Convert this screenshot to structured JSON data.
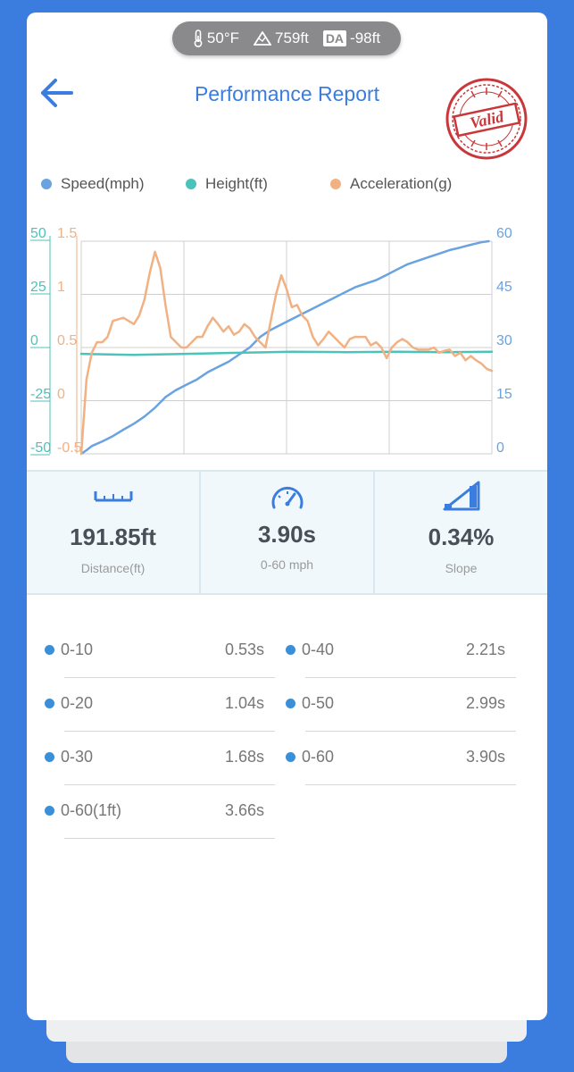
{
  "status": {
    "temperature": "50°F",
    "elevation": "759ft",
    "da_label": "DA",
    "density_altitude": "-98ft",
    "icons": [
      "thermometer-icon",
      "mountain-icon",
      "da-badge"
    ]
  },
  "header": {
    "title": "Performance Report",
    "stamp_text": "Valid",
    "stamp_color": "#c9373a",
    "accent_color": "#3a7ddf"
  },
  "legend": [
    {
      "name": "Speed(mph)",
      "color": "#6aa3df"
    },
    {
      "name": "Height(ft)",
      "color": "#4bc3bb"
    },
    {
      "name": "Acceleration(g)",
      "color": "#f1b183"
    }
  ],
  "chart_data": {
    "type": "line",
    "grid": true,
    "x": [
      0,
      0.3,
      0.6,
      0.9,
      1.2,
      1.5,
      1.8,
      2.1,
      2.4,
      2.7,
      3.0,
      3.3,
      3.6,
      3.9
    ],
    "axes": {
      "height_left": {
        "ticks": [
          "50",
          "25",
          "0",
          "-25",
          "-50"
        ],
        "range": [
          -50,
          50
        ],
        "color": "#4bc3bb"
      },
      "accel_left": {
        "ticks": [
          "1.5",
          "1",
          "0.5",
          "0",
          "-0.5"
        ],
        "range": [
          -0.5,
          1.5
        ],
        "color": "#f1b183"
      },
      "speed_right": {
        "ticks": [
          "60",
          "45",
          "30",
          "15",
          "0"
        ],
        "range": [
          0,
          60
        ],
        "color": "#6aa3df"
      }
    },
    "series": [
      {
        "name": "Speed(mph)",
        "axis": "speed_right",
        "color": "#6aa3df",
        "points": [
          [
            0,
            0
          ],
          [
            0.05,
            1
          ],
          [
            0.1,
            2.2
          ],
          [
            0.2,
            3.5
          ],
          [
            0.3,
            5
          ],
          [
            0.4,
            6.8
          ],
          [
            0.5,
            8.5
          ],
          [
            0.6,
            10.5
          ],
          [
            0.7,
            13
          ],
          [
            0.75,
            14.5
          ],
          [
            0.8,
            16
          ],
          [
            0.9,
            18
          ],
          [
            1.0,
            19.5
          ],
          [
            1.1,
            21
          ],
          [
            1.2,
            23
          ],
          [
            1.3,
            24.5
          ],
          [
            1.4,
            26
          ],
          [
            1.5,
            28
          ],
          [
            1.6,
            30
          ],
          [
            1.7,
            33
          ],
          [
            1.8,
            35
          ],
          [
            1.9,
            36.5
          ],
          [
            2.0,
            38
          ],
          [
            2.1,
            39.5
          ],
          [
            2.2,
            41
          ],
          [
            2.3,
            42.5
          ],
          [
            2.4,
            44
          ],
          [
            2.5,
            45.5
          ],
          [
            2.6,
            47
          ],
          [
            2.7,
            48
          ],
          [
            2.8,
            49
          ],
          [
            2.9,
            50.5
          ],
          [
            3.0,
            52
          ],
          [
            3.1,
            53.5
          ],
          [
            3.2,
            54.5
          ],
          [
            3.3,
            55.5
          ],
          [
            3.4,
            56.5
          ],
          [
            3.5,
            57.5
          ],
          [
            3.6,
            58.2
          ],
          [
            3.7,
            59
          ],
          [
            3.8,
            59.7
          ],
          [
            3.87,
            60
          ]
        ]
      },
      {
        "name": "Height(ft)",
        "axis": "height_left",
        "color": "#4bc3bb",
        "points": [
          [
            0,
            -3
          ],
          [
            0.5,
            -3.5
          ],
          [
            1.0,
            -3
          ],
          [
            1.5,
            -2.5
          ],
          [
            2.0,
            -2
          ],
          [
            2.5,
            -2.2
          ],
          [
            3.0,
            -2
          ],
          [
            3.5,
            -2.2
          ],
          [
            3.9,
            -2
          ]
        ]
      },
      {
        "name": "Acceleration(g)",
        "axis": "accel_left",
        "color": "#f1b183",
        "points": [
          [
            0,
            -0.5
          ],
          [
            0.05,
            0.2
          ],
          [
            0.1,
            0.45
          ],
          [
            0.15,
            0.55
          ],
          [
            0.2,
            0.55
          ],
          [
            0.25,
            0.6
          ],
          [
            0.3,
            0.75
          ],
          [
            0.4,
            0.78
          ],
          [
            0.5,
            0.72
          ],
          [
            0.55,
            0.8
          ],
          [
            0.6,
            0.95
          ],
          [
            0.65,
            1.2
          ],
          [
            0.7,
            1.4
          ],
          [
            0.75,
            1.25
          ],
          [
            0.8,
            0.9
          ],
          [
            0.85,
            0.6
          ],
          [
            0.9,
            0.55
          ],
          [
            0.95,
            0.5
          ],
          [
            1.0,
            0.5
          ],
          [
            1.05,
            0.55
          ],
          [
            1.1,
            0.6
          ],
          [
            1.15,
            0.6
          ],
          [
            1.2,
            0.7
          ],
          [
            1.25,
            0.78
          ],
          [
            1.3,
            0.72
          ],
          [
            1.35,
            0.65
          ],
          [
            1.4,
            0.7
          ],
          [
            1.45,
            0.62
          ],
          [
            1.5,
            0.65
          ],
          [
            1.55,
            0.72
          ],
          [
            1.6,
            0.68
          ],
          [
            1.65,
            0.6
          ],
          [
            1.7,
            0.55
          ],
          [
            1.75,
            0.5
          ],
          [
            1.8,
            0.75
          ],
          [
            1.85,
            1.0
          ],
          [
            1.9,
            1.18
          ],
          [
            1.95,
            1.05
          ],
          [
            2.0,
            0.88
          ],
          [
            2.05,
            0.9
          ],
          [
            2.1,
            0.8
          ],
          [
            2.15,
            0.75
          ],
          [
            2.2,
            0.6
          ],
          [
            2.25,
            0.52
          ],
          [
            2.3,
            0.58
          ],
          [
            2.35,
            0.65
          ],
          [
            2.4,
            0.6
          ],
          [
            2.45,
            0.55
          ],
          [
            2.5,
            0.5
          ],
          [
            2.55,
            0.58
          ],
          [
            2.6,
            0.6
          ],
          [
            2.7,
            0.6
          ],
          [
            2.75,
            0.52
          ],
          [
            2.8,
            0.55
          ],
          [
            2.85,
            0.5
          ],
          [
            2.9,
            0.4
          ],
          [
            2.95,
            0.5
          ],
          [
            3.0,
            0.55
          ],
          [
            3.05,
            0.58
          ],
          [
            3.1,
            0.55
          ],
          [
            3.15,
            0.5
          ],
          [
            3.2,
            0.48
          ],
          [
            3.3,
            0.48
          ],
          [
            3.35,
            0.5
          ],
          [
            3.4,
            0.45
          ],
          [
            3.45,
            0.47
          ],
          [
            3.5,
            0.48
          ],
          [
            3.55,
            0.42
          ],
          [
            3.6,
            0.45
          ],
          [
            3.65,
            0.38
          ],
          [
            3.7,
            0.42
          ],
          [
            3.75,
            0.38
          ],
          [
            3.8,
            0.35
          ],
          [
            3.85,
            0.3
          ],
          [
            3.9,
            0.28
          ]
        ]
      }
    ]
  },
  "stats": [
    {
      "icon": "ruler-icon",
      "value": "191.85ft",
      "label": "Distance(ft)"
    },
    {
      "icon": "speedometer-icon",
      "value": "3.90s",
      "label": "0-60 mph"
    },
    {
      "icon": "slope-icon",
      "value": "0.34%",
      "label": "Slope"
    }
  ],
  "splits": [
    {
      "label": "0-10",
      "value": "0.53s"
    },
    {
      "label": "0-20",
      "value": "1.04s"
    },
    {
      "label": "0-30",
      "value": "1.68s"
    },
    {
      "label": "0-60(1ft)",
      "value": "3.66s"
    },
    {
      "label": "0-40",
      "value": "2.21s"
    },
    {
      "label": "0-50",
      "value": "2.99s"
    },
    {
      "label": "0-60",
      "value": "3.90s"
    }
  ]
}
